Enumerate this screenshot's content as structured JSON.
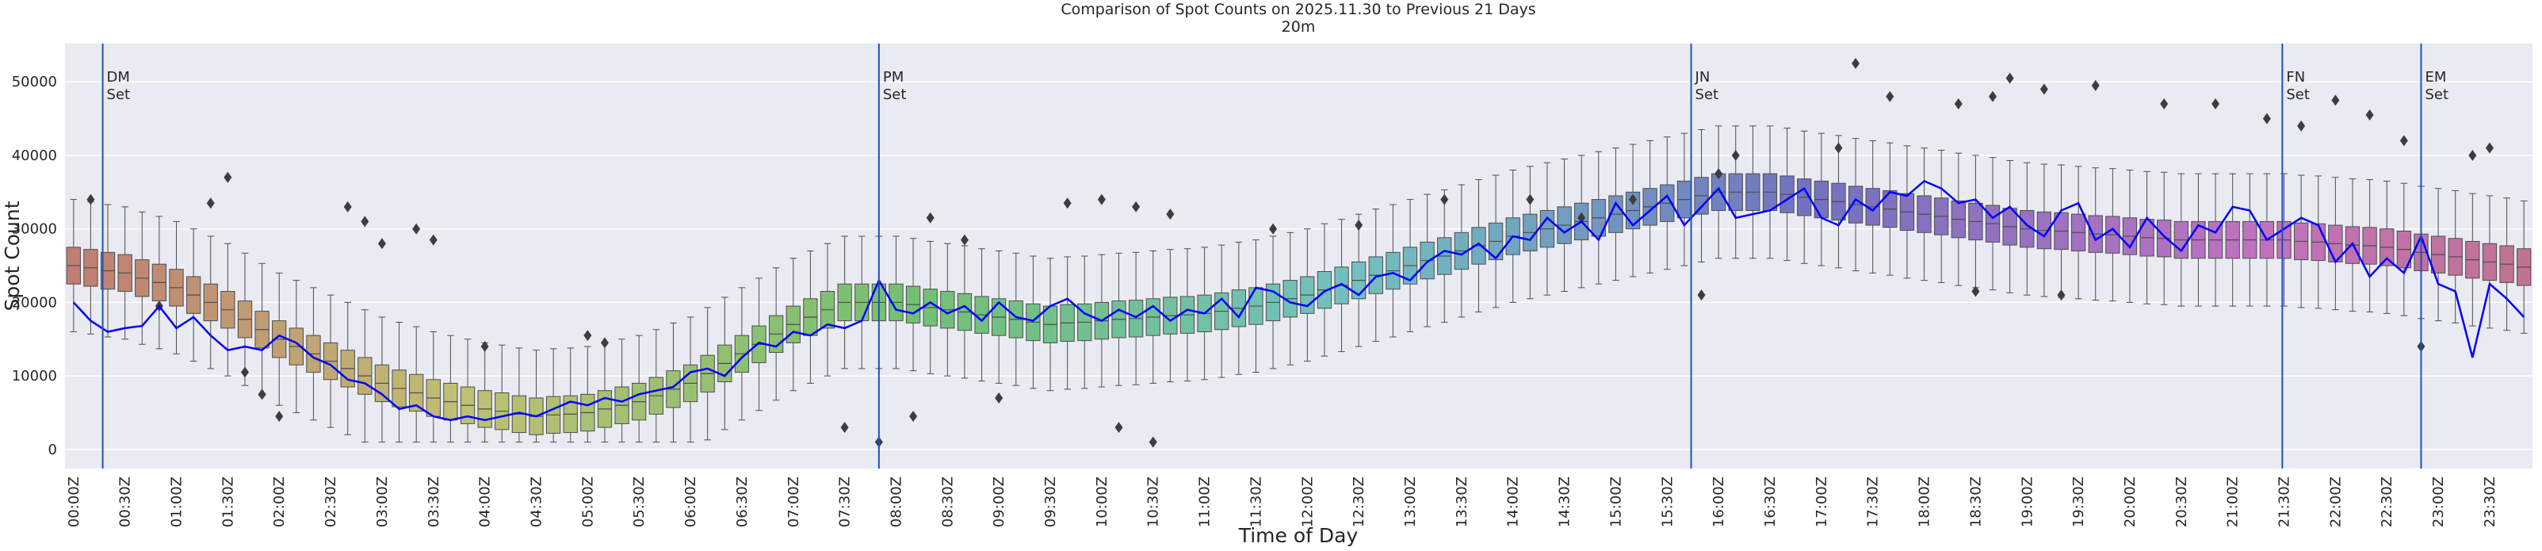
{
  "chart_data": {
    "type": "box",
    "title": "Comparison of Spot Counts on 2025.11.30 to Previous 21 Days",
    "subtitle": "20m",
    "xlabel": "Time of Day",
    "ylabel": "Spot Count",
    "categories": [
      "00:00Z",
      null,
      null,
      "00:30Z",
      null,
      null,
      "01:00Z",
      null,
      null,
      "01:30Z",
      null,
      null,
      "02:00Z",
      null,
      null,
      "02:30Z",
      null,
      null,
      "03:00Z",
      null,
      null,
      "03:30Z",
      null,
      null,
      "04:00Z",
      null,
      null,
      "04:30Z",
      null,
      null,
      "05:00Z",
      null,
      null,
      "05:30Z",
      null,
      null,
      "06:00Z",
      null,
      null,
      "06:30Z",
      null,
      null,
      "07:00Z",
      null,
      null,
      "07:30Z",
      null,
      null,
      "08:00Z",
      null,
      null,
      "08:30Z",
      null,
      null,
      "09:00Z",
      null,
      null,
      "09:30Z",
      null,
      null,
      "10:00Z",
      null,
      null,
      "10:30Z",
      null,
      null,
      "11:00Z",
      null,
      null,
      "11:30Z",
      null,
      null,
      "12:00Z",
      null,
      null,
      "12:30Z",
      null,
      null,
      "13:00Z",
      null,
      null,
      "13:30Z",
      null,
      null,
      "14:00Z",
      null,
      null,
      "14:30Z",
      null,
      null,
      "15:00Z",
      null,
      null,
      "15:30Z",
      null,
      null,
      "16:00Z",
      null,
      null,
      "16:30Z",
      null,
      null,
      "17:00Z",
      null,
      null,
      "17:30Z",
      null,
      null,
      "18:00Z",
      null,
      null,
      "18:30Z",
      null,
      null,
      "19:00Z",
      null,
      null,
      "19:30Z",
      null,
      null,
      "20:00Z",
      null,
      null,
      "20:30Z",
      null,
      null,
      "21:00Z",
      null,
      null,
      "21:30Z",
      null,
      null,
      "22:00Z",
      null,
      null,
      "22:30Z",
      null,
      null,
      "23:00Z",
      null,
      null,
      "23:30Z",
      null,
      null
    ],
    "median": [
      25000,
      24700,
      24300,
      24000,
      23300,
      22700,
      22000,
      21000,
      20000,
      19000,
      17700,
      16300,
      15000,
      14000,
      13000,
      12000,
      11000,
      10000,
      9000,
      8300,
      7700,
      7000,
      6500,
      6000,
      5500,
      5200,
      4800,
      4500,
      4700,
      4800,
      5000,
      5500,
      6000,
      6500,
      7300,
      8200,
      9000,
      10300,
      11700,
      13000,
      14300,
      15700,
      17000,
      18000,
      19000,
      20000,
      20000,
      20000,
      20000,
      19700,
      19300,
      19000,
      18700,
      18300,
      18000,
      17700,
      17300,
      17000,
      17200,
      17300,
      17500,
      17700,
      17800,
      18000,
      18200,
      18300,
      18500,
      18800,
      19200,
      19500,
      20000,
      20500,
      21000,
      21700,
      22300,
      23000,
      23700,
      24300,
      25000,
      25700,
      26300,
      27000,
      27700,
      28300,
      29000,
      29500,
      30000,
      30500,
      31000,
      31500,
      32000,
      32500,
      33000,
      33500,
      34000,
      34500,
      35000,
      35000,
      35000,
      35000,
      34700,
      34300,
      34000,
      33700,
      33300,
      33000,
      32700,
      32300,
      32000,
      31700,
      31300,
      31000,
      30700,
      30300,
      30000,
      29800,
      29700,
      29500,
      29300,
      29200,
      29000,
      28800,
      28700,
      28500,
      28500,
      28500,
      28500,
      28500,
      28500,
      28500,
      28300,
      28200,
      28000,
      27800,
      27700,
      27500,
      27200,
      26800,
      26500,
      26200,
      25800,
      25500,
      25200,
      24800
    ],
    "q1": [
      22500,
      22200,
      21800,
      21500,
      20800,
      20200,
      19500,
      18500,
      17500,
      16500,
      15200,
      13800,
      12500,
      11500,
      10500,
      9500,
      8500,
      7500,
      6500,
      5800,
      5200,
      4500,
      4000,
      3500,
      3000,
      2700,
      2300,
      2000,
      2200,
      2300,
      2500,
      3000,
      3500,
      4000,
      4800,
      5700,
      6500,
      7800,
      9200,
      10500,
      11800,
      13200,
      14500,
      15500,
      16500,
      17500,
      17500,
      17500,
      17500,
      17200,
      16800,
      16500,
      16200,
      15800,
      15500,
      15200,
      14800,
      14500,
      14700,
      14800,
      15000,
      15200,
      15300,
      15500,
      15700,
      15800,
      16000,
      16300,
      16700,
      17000,
      17500,
      18000,
      18500,
      19200,
      19800,
      20500,
      21200,
      21800,
      22500,
      23200,
      23800,
      24500,
      25200,
      25800,
      26500,
      27000,
      27500,
      28000,
      28500,
      29000,
      29500,
      30000,
      30500,
      31000,
      31500,
      32000,
      32500,
      32500,
      32500,
      32500,
      32200,
      31800,
      31500,
      31200,
      30800,
      30500,
      30200,
      29800,
      29500,
      29200,
      28800,
      28500,
      28200,
      27800,
      27500,
      27300,
      27200,
      27000,
      26800,
      26700,
      26500,
      26300,
      26200,
      26000,
      26000,
      26000,
      26000,
      26000,
      26000,
      26000,
      25800,
      25700,
      25500,
      25300,
      25200,
      25000,
      24700,
      24300,
      24000,
      23700,
      23300,
      23000,
      22700,
      22300
    ],
    "q3": [
      27500,
      27200,
      26800,
      26500,
      25800,
      25200,
      24500,
      23500,
      22500,
      21500,
      20200,
      18800,
      17500,
      16500,
      15500,
      14500,
      13500,
      12500,
      11500,
      10800,
      10200,
      9500,
      9000,
      8500,
      8000,
      7700,
      7300,
      7000,
      7200,
      7300,
      7500,
      8000,
      8500,
      9000,
      9800,
      10700,
      11500,
      12800,
      14200,
      15500,
      16800,
      18200,
      19500,
      20500,
      21500,
      22500,
      22500,
      22500,
      22500,
      22200,
      21800,
      21500,
      21200,
      20800,
      20500,
      20200,
      19800,
      19500,
      19700,
      19800,
      20000,
      20200,
      20300,
      20500,
      20700,
      20800,
      21000,
      21300,
      21700,
      22000,
      22500,
      23000,
      23500,
      24200,
      24800,
      25500,
      26200,
      26800,
      27500,
      28200,
      28800,
      29500,
      30200,
      30800,
      31500,
      32000,
      32500,
      33000,
      33500,
      34000,
      34500,
      35000,
      35500,
      36000,
      36500,
      37000,
      37500,
      37500,
      37500,
      37500,
      37200,
      36800,
      36500,
      36200,
      35800,
      35500,
      35200,
      34800,
      34500,
      34200,
      33800,
      33500,
      33200,
      32800,
      32500,
      32300,
      32200,
      32000,
      31800,
      31700,
      31500,
      31300,
      31200,
      31000,
      31000,
      31000,
      31000,
      31000,
      31000,
      31000,
      30800,
      30700,
      30500,
      30300,
      30200,
      30000,
      29700,
      29300,
      29000,
      28700,
      28300,
      28000,
      27700,
      27300
    ],
    "whislo": [
      16000,
      15700,
      15300,
      15000,
      14300,
      13700,
      13000,
      12000,
      11000,
      10000,
      8700,
      7300,
      6000,
      5000,
      4000,
      3000,
      2000,
      1000,
      1000,
      1000,
      1000,
      1000,
      1000,
      1000,
      1000,
      1000,
      1000,
      1000,
      1000,
      1000,
      1000,
      1000,
      1000,
      1000,
      1000,
      1000,
      1000,
      1300,
      2700,
      4000,
      5300,
      6700,
      8000,
      9000,
      10000,
      11000,
      11000,
      11000,
      11000,
      10700,
      10300,
      10000,
      9700,
      9300,
      9000,
      8700,
      8300,
      8000,
      8200,
      8300,
      8500,
      8700,
      8800,
      9000,
      9200,
      9300,
      9500,
      9800,
      10200,
      10500,
      11000,
      11500,
      12000,
      12700,
      13300,
      14000,
      14700,
      15300,
      16000,
      16700,
      17300,
      18000,
      18700,
      19300,
      20000,
      20500,
      21000,
      21500,
      22000,
      22500,
      23000,
      23500,
      24000,
      24500,
      25000,
      25500,
      26000,
      26000,
      26000,
      26000,
      25700,
      25300,
      25000,
      24700,
      24300,
      24000,
      23700,
      23300,
      23000,
      22700,
      22300,
      22000,
      21700,
      21300,
      21000,
      20800,
      20700,
      20500,
      20300,
      20200,
      20000,
      19800,
      19700,
      19500,
      19500,
      19500,
      19500,
      19500,
      19500,
      19500,
      19300,
      19200,
      19000,
      18800,
      18700,
      18500,
      18200,
      17800,
      17500,
      17200,
      16800,
      16500,
      16200,
      15800
    ],
    "whishi": [
      34000,
      33700,
      33300,
      33000,
      32300,
      31700,
      31000,
      30000,
      29000,
      28000,
      26700,
      25300,
      24000,
      23000,
      22000,
      21000,
      20000,
      19000,
      18000,
      17300,
      16700,
      16000,
      15500,
      15000,
      14500,
      14200,
      13800,
      13500,
      13700,
      13800,
      14000,
      14500,
      15000,
      15500,
      16300,
      17200,
      18000,
      19300,
      20700,
      22000,
      23300,
      24700,
      26000,
      27000,
      28000,
      29000,
      29000,
      29000,
      29000,
      28700,
      28300,
      28000,
      27700,
      27300,
      27000,
      26700,
      26300,
      26000,
      26200,
      26300,
      26500,
      26700,
      26800,
      27000,
      27200,
      27300,
      27500,
      27800,
      28200,
      28500,
      29000,
      29500,
      30000,
      30700,
      31300,
      32000,
      32700,
      33300,
      34000,
      34700,
      35300,
      36000,
      36700,
      37300,
      38000,
      38500,
      39000,
      39500,
      40000,
      40500,
      41000,
      41500,
      42000,
      42500,
      43000,
      43500,
      44000,
      44000,
      44000,
      44000,
      43700,
      43300,
      43000,
      42700,
      42300,
      42000,
      41700,
      41300,
      41000,
      40700,
      40300,
      40000,
      39700,
      39300,
      39000,
      38800,
      38700,
      38500,
      38300,
      38200,
      38000,
      37800,
      37700,
      37500,
      37500,
      37500,
      37500,
      37500,
      37500,
      37500,
      37300,
      37200,
      37000,
      36800,
      36700,
      36500,
      36200,
      35800,
      35500,
      35200,
      34800,
      34500,
      34200,
      33800
    ],
    "box_palette": "husl",
    "box_edge_color": "#4d4d4d",
    "outliers": [
      [
        1,
        34000
      ],
      [
        5,
        19500
      ],
      [
        8,
        33500
      ],
      [
        9,
        37000
      ],
      [
        10,
        10500
      ],
      [
        11,
        7500
      ],
      [
        12,
        4500
      ],
      [
        16,
        33000
      ],
      [
        17,
        31000
      ],
      [
        18,
        28000
      ],
      [
        20,
        30000
      ],
      [
        21,
        28500
      ],
      [
        24,
        14000
      ],
      [
        30,
        15500
      ],
      [
        31,
        14500
      ],
      [
        45,
        3000
      ],
      [
        47,
        1000
      ],
      [
        49,
        4500
      ],
      [
        50,
        31500
      ],
      [
        52,
        28500
      ],
      [
        54,
        7000
      ],
      [
        58,
        33500
      ],
      [
        60,
        34000
      ],
      [
        61,
        3000
      ],
      [
        62,
        33000
      ],
      [
        63,
        1000
      ],
      [
        64,
        32000
      ],
      [
        70,
        30000
      ],
      [
        75,
        30500
      ],
      [
        80,
        34000
      ],
      [
        85,
        34000
      ],
      [
        88,
        31500
      ],
      [
        91,
        34000
      ],
      [
        95,
        21000
      ],
      [
        96,
        37500
      ],
      [
        97,
        40000
      ],
      [
        103,
        41000
      ],
      [
        104,
        52500
      ],
      [
        106,
        48000
      ],
      [
        110,
        47000
      ],
      [
        111,
        21500
      ],
      [
        112,
        48000
      ],
      [
        113,
        50500
      ],
      [
        115,
        49000
      ],
      [
        116,
        21000
      ],
      [
        118,
        49500
      ],
      [
        122,
        47000
      ],
      [
        125,
        47000
      ],
      [
        128,
        45000
      ],
      [
        130,
        44000
      ],
      [
        132,
        47500
      ],
      [
        134,
        45500
      ],
      [
        136,
        42000
      ],
      [
        137,
        14000
      ],
      [
        140,
        40000
      ],
      [
        141,
        41000
      ]
    ],
    "outlier_color": "#3d3d3d",
    "line": {
      "color": "#0000ff",
      "values": [
        20000,
        17500,
        16000,
        16500,
        16800,
        19500,
        16500,
        18000,
        15500,
        13500,
        14000,
        13500,
        15500,
        14500,
        12500,
        11500,
        9500,
        9000,
        7500,
        5500,
        6000,
        4500,
        4000,
        4500,
        4000,
        4500,
        5000,
        4500,
        5500,
        6500,
        6000,
        7000,
        6500,
        7500,
        8000,
        8500,
        10500,
        11000,
        10000,
        12500,
        14500,
        14000,
        16000,
        15500,
        17000,
        16500,
        17500,
        23000,
        19000,
        18500,
        20000,
        18500,
        19500,
        17500,
        20000,
        18000,
        17500,
        19500,
        20500,
        18500,
        17500,
        19000,
        18000,
        19500,
        17500,
        19000,
        18500,
        20500,
        18000,
        22000,
        21500,
        20000,
        19500,
        21500,
        22500,
        21000,
        23500,
        24000,
        23000,
        25500,
        27000,
        26500,
        28000,
        26000,
        29000,
        28500,
        31500,
        29500,
        31000,
        28500,
        33500,
        30500,
        32500,
        34500,
        30500,
        33000,
        35500,
        31500,
        32000,
        32500,
        34000,
        35500,
        31500,
        30500,
        34000,
        32500,
        35000,
        34500,
        36500,
        35500,
        33500,
        34000,
        31500,
        33000,
        30500,
        29000,
        32500,
        33500,
        28500,
        30000,
        27500,
        31500,
        29000,
        27000,
        30500,
        29500,
        33000,
        32500,
        28500,
        30000,
        31500,
        30500,
        25500,
        28000,
        23500,
        26000,
        24000,
        29000,
        22500,
        21500,
        12500,
        22500,
        20500,
        18000
      ]
    },
    "markers": [
      {
        "x": 1.7,
        "label": [
          "DM",
          "Set"
        ]
      },
      {
        "x": 47.0,
        "label": [
          "PM",
          "Set"
        ]
      },
      {
        "x": 94.4,
        "label": [
          "JN",
          "Set"
        ]
      },
      {
        "x": 128.9,
        "label": [
          "FN",
          "Set"
        ]
      },
      {
        "x": 137.0,
        "label": [
          "EM",
          "Set"
        ]
      }
    ],
    "marker_color": "#1f4fbf",
    "ylim": [
      -2600,
      55200
    ],
    "yticks": [
      0,
      10000,
      20000,
      30000,
      40000,
      50000
    ],
    "grid": true,
    "background": "#eaeaf2"
  }
}
